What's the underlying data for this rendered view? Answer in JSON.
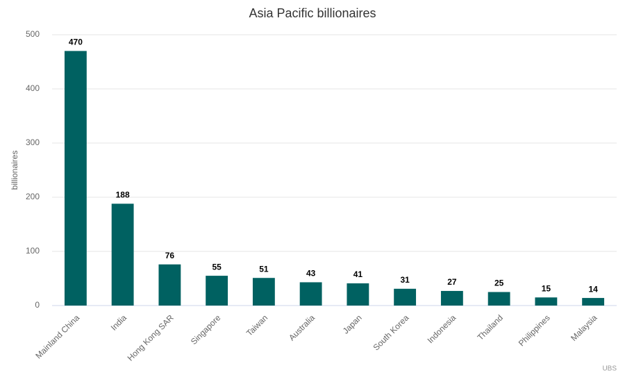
{
  "chart_data": {
    "type": "bar",
    "title": "Asia Pacific billionaires",
    "y_label": "billionaires",
    "credit": "UBS",
    "categories": [
      "Mainland China",
      "India",
      "Hong Kong SAR",
      "Singapore",
      "Taiwan",
      "Australia",
      "Japan",
      "South Korea",
      "Indonesia",
      "Thailand",
      "Philippines",
      "Malaysia"
    ],
    "values": [
      470,
      188,
      76,
      55,
      51,
      43,
      41,
      31,
      27,
      25,
      15,
      14
    ],
    "color": "#006161",
    "ylim": [
      0,
      500
    ],
    "yticks": [
      0,
      100,
      200,
      300,
      400,
      500
    ],
    "grid": true
  }
}
